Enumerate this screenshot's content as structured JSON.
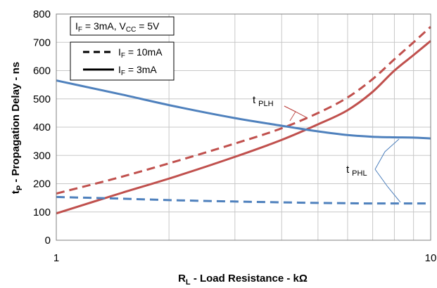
{
  "chart_data": {
    "type": "line",
    "title": "",
    "xlabel": {
      "main": "R",
      "sub": "L",
      "rest": " - Load Resistance - kΩ"
    },
    "ylabel": {
      "main": "t",
      "sub": "P",
      "rest": " - Propagation Delay - ns"
    },
    "x_scale": "log",
    "xlim": [
      1,
      10
    ],
    "ylim": [
      0,
      800
    ],
    "x_ticks": [
      1,
      10
    ],
    "x_tick_labels": [
      "1",
      "10"
    ],
    "y_ticks": [
      0,
      100,
      200,
      300,
      400,
      500,
      600,
      700,
      800
    ],
    "y_tick_labels": [
      "0",
      "100",
      "200",
      "300",
      "400",
      "500",
      "600",
      "700",
      "800"
    ],
    "grid": true,
    "condition_box": {
      "p1": "I",
      "p1_sub": "F",
      "p2": " = 3mA, V",
      "p2_sub": "CC",
      "p3": " = 5V"
    },
    "legend": {
      "placement": "top-left",
      "entries": [
        {
          "main": "I",
          "sub": "F",
          "rest": " = 10mA",
          "style": "dashed"
        },
        {
          "main": "I",
          "sub": "F",
          "rest": " = 3mA",
          "style": "solid"
        }
      ]
    },
    "annotations": [
      {
        "main": "t",
        "sub": "PLH",
        "color": "#c0504d"
      },
      {
        "main": "t",
        "sub": "PHL",
        "color": "#4f81bd"
      }
    ],
    "series": [
      {
        "key": "tplh_10ma",
        "group": "tPLH",
        "current": "10mA",
        "style": "dashed",
        "color": "#c0504d",
        "x": [
          1,
          1.5,
          2,
          3,
          4,
          5,
          6,
          7,
          8,
          9,
          10
        ],
        "y": [
          165,
          225,
          272,
          342,
          396,
          450,
          505,
          570,
          640,
          700,
          755
        ]
      },
      {
        "key": "tplh_3ma",
        "group": "tPLH",
        "current": "3mA",
        "style": "solid",
        "color": "#c0504d",
        "x": [
          1,
          1.5,
          2,
          3,
          4,
          5,
          6,
          7,
          8,
          9,
          10
        ],
        "y": [
          95,
          168,
          218,
          295,
          355,
          410,
          460,
          525,
          600,
          655,
          705
        ]
      },
      {
        "key": "tphl_3ma",
        "group": "tPHL",
        "current": "3mA",
        "style": "solid",
        "color": "#4f81bd",
        "x": [
          1,
          1.5,
          2,
          3,
          4,
          5,
          6,
          7,
          8,
          9,
          10
        ],
        "y": [
          565,
          515,
          478,
          432,
          405,
          385,
          372,
          366,
          364,
          363,
          360
        ]
      },
      {
        "key": "tphl_10ma",
        "group": "tPHL",
        "current": "10mA",
        "style": "dashed",
        "color": "#4f81bd",
        "x": [
          1,
          1.5,
          2,
          3,
          4,
          5,
          6,
          7,
          8,
          9,
          10
        ],
        "y": [
          153,
          147,
          142,
          137,
          134,
          132,
          131,
          130,
          130,
          130,
          130
        ]
      }
    ]
  }
}
